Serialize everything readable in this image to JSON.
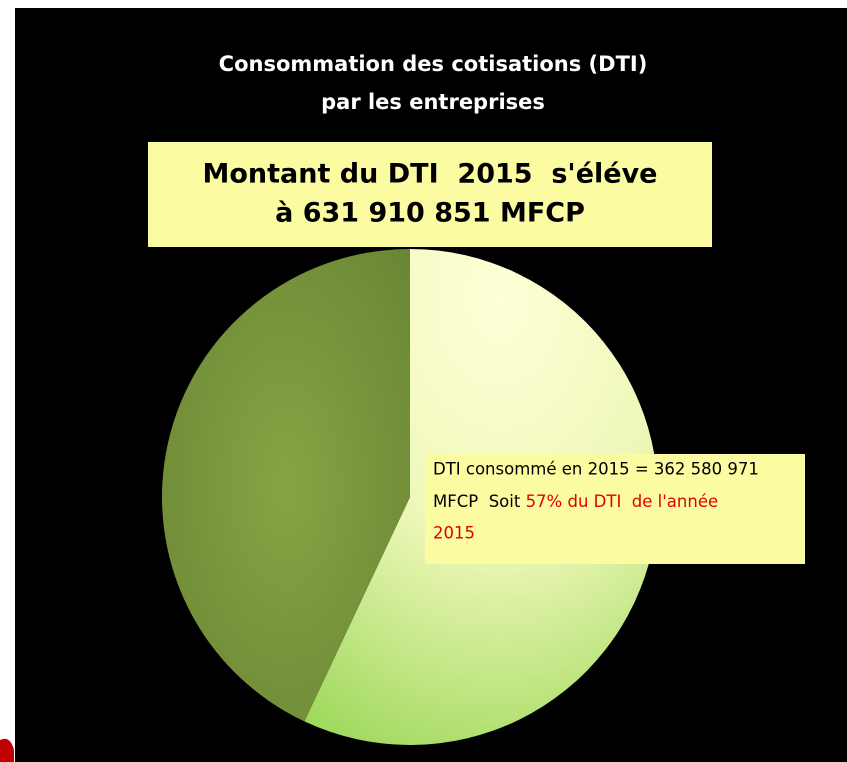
{
  "chart_data": {
    "type": "pie",
    "title": [
      "Consommation des cotisations (DTI)",
      "par les entreprises"
    ],
    "callout": [
      "Montant du DTI  2015  s'éléve",
      "à 631 910 851 MFCP"
    ],
    "categories": [
      null,
      null
    ],
    "values": [
      57,
      43
    ],
    "colors": [
      "#a9dd63",
      "#76933c"
    ],
    "annotation": {
      "line1": "DTI consommé en 2015 = 362 580 971",
      "line2": "MFCP  Soit ",
      "line2_highlight": "57% du DTI  de l'année",
      "line3_highlight": "2015"
    }
  }
}
